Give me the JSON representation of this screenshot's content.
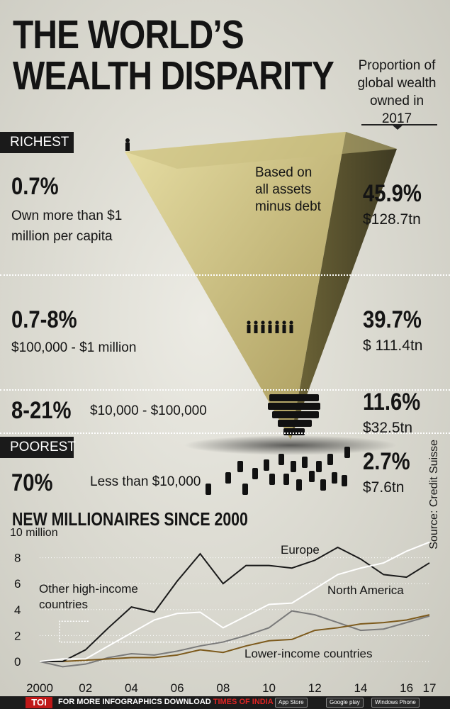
{
  "title": {
    "line1": "THE WORLD’S",
    "line2": "WEALTH DISPARITY"
  },
  "proportion_label": "Proportion of global wealth owned in 2017",
  "basis_note": "Based on all assets minus debt",
  "tags": {
    "richest": "RICHEST",
    "poorest": "POOREST"
  },
  "tiers": [
    {
      "pct": "0.7%",
      "desc": "Own more than $1 million per capita",
      "share": "45.9%",
      "amount": "$128.7tn"
    },
    {
      "pct": "0.7-8%",
      "desc": "$100,000 - $1 million",
      "share": "39.7%",
      "amount": "$ 111.4tn"
    },
    {
      "pct": "8-21%",
      "desc": "$10,000  - $100,000",
      "share": "11.6%",
      "amount": "$32.5tn"
    },
    {
      "pct": "70%",
      "desc": "Less than $10,000",
      "share": "2.7%",
      "amount": "$7.6tn"
    }
  ],
  "source": "Source: Credit Suisse",
  "chart_data": {
    "type": "line",
    "title": "NEW MILLIONAIRES SINCE 2000",
    "ylabel": "million",
    "ylim": [
      -0.6,
      10
    ],
    "xlim": [
      2000,
      2017
    ],
    "x": [
      2000,
      2001,
      2002,
      2003,
      2004,
      2005,
      2006,
      2007,
      2008,
      2009,
      2010,
      2011,
      2012,
      2013,
      2014,
      2015,
      2016,
      2017
    ],
    "x_tick_values": [
      2000,
      2002,
      2004,
      2006,
      2008,
      2010,
      2012,
      2014,
      2016,
      2017
    ],
    "x_tick_labels": [
      "2000",
      "02",
      "04",
      "06",
      "08",
      "10",
      "12",
      "14",
      "16",
      "17"
    ],
    "y_ticks": [
      0,
      2,
      4,
      6,
      8
    ],
    "y_top_label": "10",
    "series": [
      {
        "name": "Europe",
        "color": "#1a1a1a",
        "values": [
          0,
          0,
          0.9,
          2.6,
          4.2,
          3.8,
          6.2,
          8.3,
          6.0,
          7.4,
          7.4,
          7.2,
          7.8,
          8.8,
          7.9,
          6.7,
          6.5,
          7.6
        ]
      },
      {
        "name": "North America",
        "color": "#ffffff",
        "values": [
          0,
          0.2,
          0.2,
          1.2,
          2.2,
          3.2,
          3.7,
          3.8,
          2.6,
          3.5,
          4.4,
          4.5,
          5.6,
          6.7,
          7.2,
          7.6,
          8.5,
          9.2
        ]
      },
      {
        "name": "Other high-income countries",
        "color": "#7a7a7a",
        "values": [
          0,
          -0.4,
          -0.2,
          0.3,
          0.6,
          0.5,
          0.8,
          1.2,
          1.5,
          2.0,
          2.6,
          3.9,
          3.6,
          3.0,
          2.4,
          2.5,
          3.0,
          3.5
        ]
      },
      {
        "name": "Lower-income countries",
        "color": "#7d5a1c",
        "values": [
          0,
          0,
          0.1,
          0.2,
          0.3,
          0.3,
          0.5,
          0.9,
          0.7,
          1.2,
          1.6,
          1.7,
          2.4,
          2.6,
          2.9,
          3.0,
          3.2,
          3.6
        ]
      }
    ]
  },
  "footer": {
    "logo": "TOI",
    "text": "FOR MORE  INFOGRAPHICS DOWNLOAD",
    "app": "TIMES OF INDIA APP",
    "badges": [
      "App Store",
      "Google play",
      "Windows Phone"
    ]
  }
}
